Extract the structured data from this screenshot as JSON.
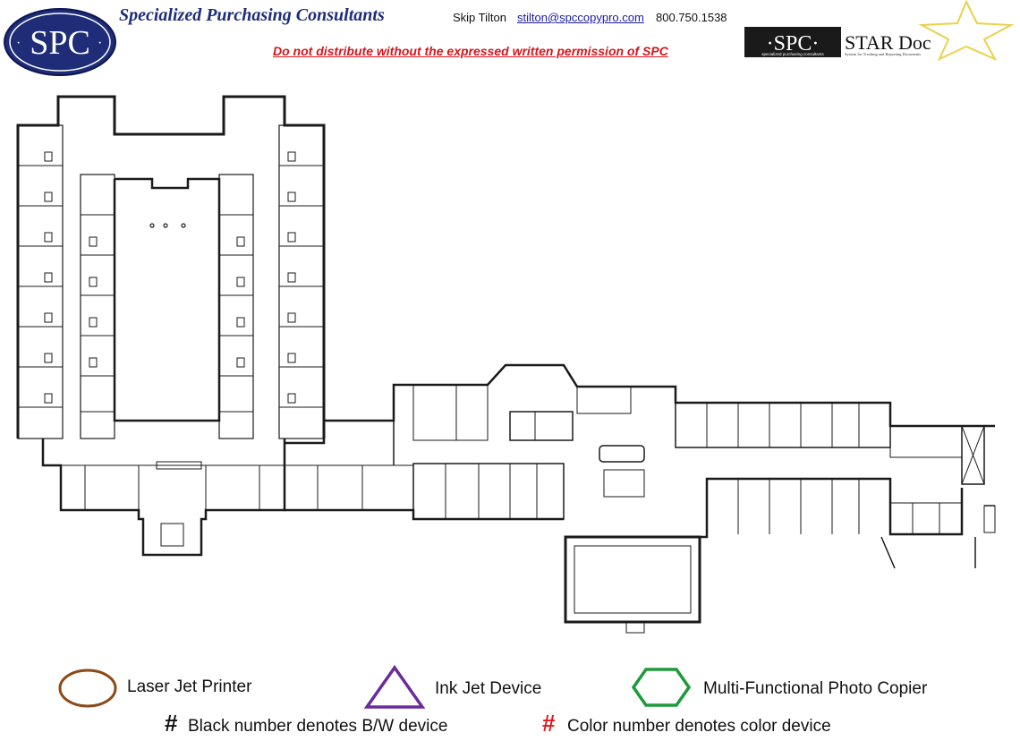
{
  "header": {
    "logo_text": "SPC",
    "company_name": "Specialized Purchasing Consultants",
    "contact_name": "Skip Tilton",
    "contact_email": "stilton@spccopypro.com",
    "contact_phone": "800.750.1538",
    "warning": "Do not distribute without the expressed written permission of SPC",
    "stardoc_logo": {
      "spc_text": "·SPC·",
      "product_name": "STAR Doc",
      "spc_subtext": "specialized purchasing consultants",
      "product_tagline": "System for Tracking and Reporting Documents"
    }
  },
  "legend": {
    "laser_label": "Laser Jet Printer",
    "inkjet_label": "Ink Jet Device",
    "mfp_label": "Multi-Functional Photo Copier",
    "hash_symbol": "#",
    "bw_note": "Black number denotes B/W device",
    "color_note": "Color number denotes color device"
  },
  "colors": {
    "brand_navy": "#1f2d78",
    "warning_red": "#d8141b",
    "laser": "#8b4a17",
    "inkjet": "#6a2c9a",
    "mfp": "#1f9a3a",
    "star": "#e8d24a"
  },
  "icons": {
    "laser": "ellipse",
    "inkjet": "triangle",
    "mfp": "hexagon"
  }
}
